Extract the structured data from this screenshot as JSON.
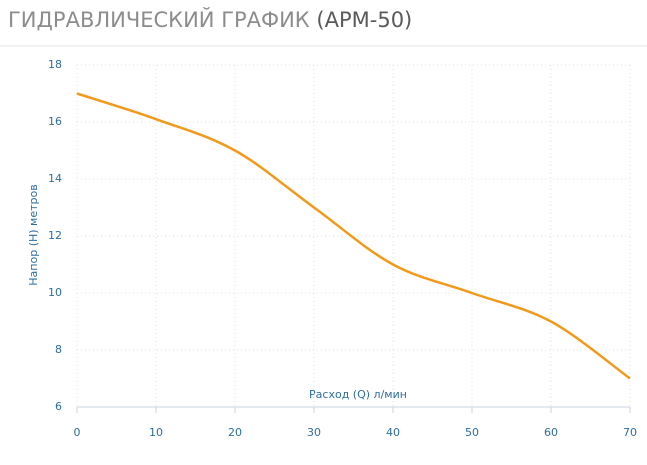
{
  "chart_data": {
    "type": "line",
    "title": "ГИДРАВЛИЧЕСКИЙ ГРАФИК",
    "title_model": "(АРМ-50)",
    "x_label": "Расход (Q) л/мин",
    "y_label": "Напор (H) метров",
    "x": [
      0,
      10,
      20,
      30,
      40,
      50,
      60,
      70
    ],
    "series": [
      {
        "color": "#f09a1c",
        "values": [
          17,
          16.1,
          15,
          13,
          11,
          10,
          9,
          7
        ]
      }
    ],
    "xlim": [
      0,
      70
    ],
    "xticks": [
      0,
      10,
      20,
      30,
      40,
      50,
      60,
      70
    ],
    "ylim": [
      6,
      18
    ],
    "yticks": [
      6,
      8,
      10,
      12,
      14,
      16,
      18
    ],
    "grid": true
  }
}
